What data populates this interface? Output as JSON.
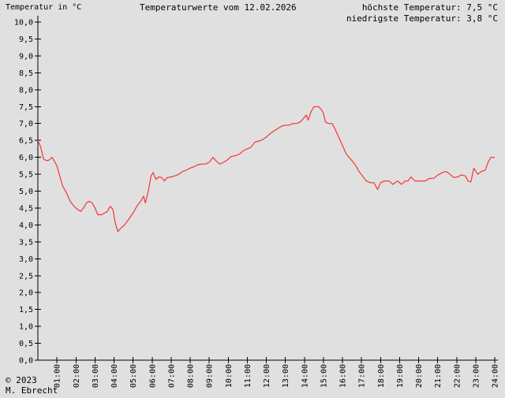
{
  "header": {
    "y_unit_note": "Temperatur in °C",
    "title": "Temperaturwerte vom 12.02.2026",
    "max_label": "höchste Temperatur: 7,5 °C",
    "min_label": "niedrigste Temperatur: 3,8 °C"
  },
  "footer": {
    "copyright": "© 2023",
    "author": "M. Ebrecht"
  },
  "colors": {
    "background": "#e0e0e0",
    "axis": "#000000",
    "text": "#000000",
    "line": "#f83434"
  },
  "chart_data": {
    "type": "line",
    "title": "Temperaturwerte vom 12.02.2026",
    "xlabel": "",
    "ylabel": "Temperatur in °C",
    "xlim": [
      0,
      24
    ],
    "ylim": [
      0,
      10
    ],
    "grid": false,
    "legend_position": "none",
    "highest_temperature": "7,5 °C",
    "lowest_temperature": "3,8 °C",
    "y_tick_step": 0.5,
    "y_tick_labels": [
      "0,0",
      "0,5",
      "1,0",
      "1,5",
      "2,0",
      "2,5",
      "3,0",
      "3,5",
      "4,0",
      "4,5",
      "5,0",
      "5,5",
      "6,0",
      "6,5",
      "7,0",
      "7,5",
      "8,0",
      "8,5",
      "9,0",
      "9,5",
      "10,0"
    ],
    "x_tick_labels": [
      "01:00",
      "02:00",
      "03:00",
      "04:00",
      "05:00",
      "06:00",
      "07:00",
      "08:00",
      "09:00",
      "10:00",
      "11:00",
      "12:00",
      "13:00",
      "14:00",
      "15:00",
      "16:00",
      "17:00",
      "18:00",
      "19:00",
      "20:00",
      "21:00",
      "22:00",
      "23:00",
      "24:00"
    ],
    "series": [
      {
        "name": "Temperatur",
        "color": "#f83434",
        "points": [
          [
            0,
            6.5
          ],
          [
            0.15,
            6.3
          ],
          [
            0.3,
            5.95
          ],
          [
            0.45,
            5.9
          ],
          [
            0.6,
            5.92
          ],
          [
            0.75,
            6.0
          ],
          [
            0.9,
            5.85
          ],
          [
            1.0,
            5.75
          ],
          [
            1.15,
            5.45
          ],
          [
            1.3,
            5.15
          ],
          [
            1.5,
            4.95
          ],
          [
            1.7,
            4.7
          ],
          [
            1.9,
            4.55
          ],
          [
            2.1,
            4.45
          ],
          [
            2.25,
            4.4
          ],
          [
            2.4,
            4.5
          ],
          [
            2.55,
            4.65
          ],
          [
            2.7,
            4.7
          ],
          [
            2.85,
            4.65
          ],
          [
            3.0,
            4.5
          ],
          [
            3.15,
            4.3
          ],
          [
            3.35,
            4.3
          ],
          [
            3.5,
            4.35
          ],
          [
            3.65,
            4.4
          ],
          [
            3.8,
            4.55
          ],
          [
            3.95,
            4.45
          ],
          [
            4.05,
            4.1
          ],
          [
            4.2,
            3.8
          ],
          [
            4.35,
            3.9
          ],
          [
            4.55,
            4.0
          ],
          [
            4.75,
            4.15
          ],
          [
            5.0,
            4.35
          ],
          [
            5.2,
            4.55
          ],
          [
            5.4,
            4.7
          ],
          [
            5.55,
            4.85
          ],
          [
            5.65,
            4.65
          ],
          [
            5.8,
            5.0
          ],
          [
            5.95,
            5.45
          ],
          [
            6.05,
            5.55
          ],
          [
            6.2,
            5.35
          ],
          [
            6.35,
            5.42
          ],
          [
            6.5,
            5.4
          ],
          [
            6.65,
            5.3
          ],
          [
            6.8,
            5.4
          ],
          [
            7.0,
            5.42
          ],
          [
            7.2,
            5.45
          ],
          [
            7.4,
            5.5
          ],
          [
            7.6,
            5.58
          ],
          [
            7.8,
            5.62
          ],
          [
            8.0,
            5.68
          ],
          [
            8.2,
            5.72
          ],
          [
            8.4,
            5.78
          ],
          [
            8.6,
            5.8
          ],
          [
            8.8,
            5.8
          ],
          [
            9.0,
            5.85
          ],
          [
            9.2,
            6.0
          ],
          [
            9.35,
            5.9
          ],
          [
            9.55,
            5.8
          ],
          [
            9.75,
            5.85
          ],
          [
            9.95,
            5.92
          ],
          [
            10.15,
            6.02
          ],
          [
            10.4,
            6.05
          ],
          [
            10.6,
            6.1
          ],
          [
            10.8,
            6.2
          ],
          [
            11.0,
            6.25
          ],
          [
            11.2,
            6.3
          ],
          [
            11.4,
            6.45
          ],
          [
            11.6,
            6.48
          ],
          [
            11.8,
            6.52
          ],
          [
            12.0,
            6.6
          ],
          [
            12.2,
            6.7
          ],
          [
            12.4,
            6.78
          ],
          [
            12.6,
            6.85
          ],
          [
            12.8,
            6.92
          ],
          [
            13.0,
            6.95
          ],
          [
            13.2,
            6.95
          ],
          [
            13.4,
            7.0
          ],
          [
            13.6,
            7.0
          ],
          [
            13.8,
            7.05
          ],
          [
            13.95,
            7.15
          ],
          [
            14.1,
            7.25
          ],
          [
            14.2,
            7.1
          ],
          [
            14.35,
            7.35
          ],
          [
            14.5,
            7.5
          ],
          [
            14.75,
            7.5
          ],
          [
            14.9,
            7.4
          ],
          [
            15.0,
            7.3
          ],
          [
            15.1,
            7.05
          ],
          [
            15.25,
            7.0
          ],
          [
            15.45,
            7.0
          ],
          [
            15.6,
            6.85
          ],
          [
            15.8,
            6.6
          ],
          [
            16.0,
            6.35
          ],
          [
            16.2,
            6.1
          ],
          [
            16.35,
            6.0
          ],
          [
            16.5,
            5.9
          ],
          [
            16.7,
            5.75
          ],
          [
            16.85,
            5.6
          ],
          [
            17.05,
            5.45
          ],
          [
            17.25,
            5.3
          ],
          [
            17.45,
            5.25
          ],
          [
            17.65,
            5.25
          ],
          [
            17.85,
            5.05
          ],
          [
            18.0,
            5.25
          ],
          [
            18.2,
            5.3
          ],
          [
            18.45,
            5.3
          ],
          [
            18.65,
            5.2
          ],
          [
            18.9,
            5.3
          ],
          [
            19.1,
            5.2
          ],
          [
            19.3,
            5.3
          ],
          [
            19.45,
            5.3
          ],
          [
            19.6,
            5.42
          ],
          [
            19.8,
            5.3
          ],
          [
            20.1,
            5.3
          ],
          [
            20.35,
            5.3
          ],
          [
            20.55,
            5.37
          ],
          [
            20.8,
            5.38
          ],
          [
            21.0,
            5.47
          ],
          [
            21.25,
            5.55
          ],
          [
            21.45,
            5.58
          ],
          [
            21.65,
            5.5
          ],
          [
            21.85,
            5.4
          ],
          [
            22.05,
            5.42
          ],
          [
            22.25,
            5.48
          ],
          [
            22.45,
            5.45
          ],
          [
            22.6,
            5.3
          ],
          [
            22.75,
            5.27
          ],
          [
            22.9,
            5.68
          ],
          [
            23.1,
            5.5
          ],
          [
            23.3,
            5.58
          ],
          [
            23.5,
            5.62
          ],
          [
            23.65,
            5.85
          ],
          [
            23.8,
            6.0
          ],
          [
            24.0,
            6.0
          ]
        ]
      }
    ]
  }
}
